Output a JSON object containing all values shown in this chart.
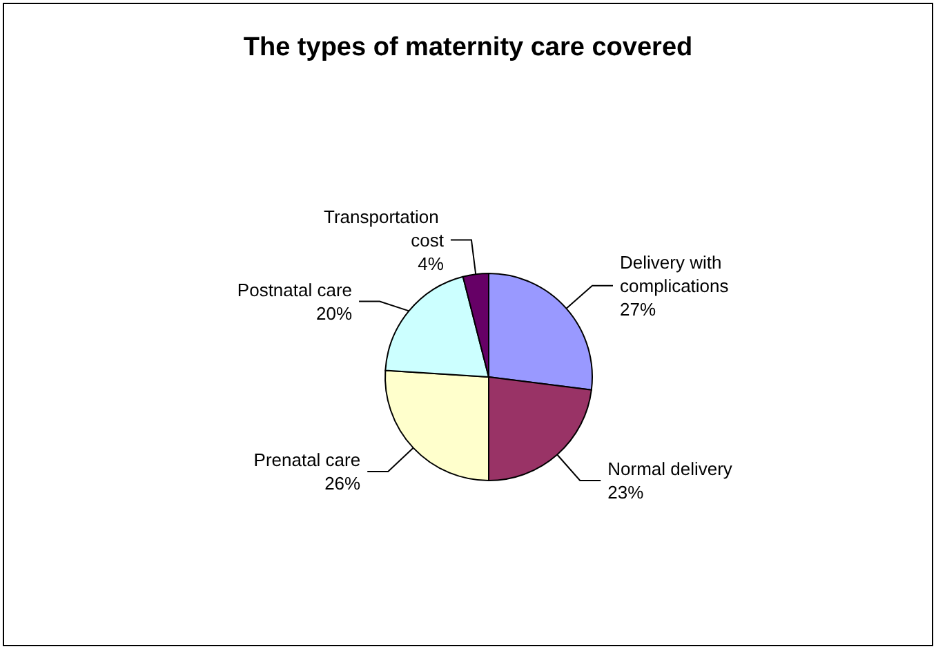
{
  "chart_data": {
    "type": "pie",
    "title": "The types of maternity care covered",
    "categories": [
      "Delivery with complications",
      "Normal delivery",
      "Prenatal care",
      "Postnatal care",
      "Transportation cost"
    ],
    "values": [
      27,
      23,
      26,
      20,
      4
    ],
    "value_labels": [
      "27%",
      "23%",
      "26%",
      "20%",
      "4%"
    ],
    "colors": [
      "#9999ff",
      "#993366",
      "#ffffcc",
      "#ccffff",
      "#660066"
    ],
    "legend": false
  }
}
